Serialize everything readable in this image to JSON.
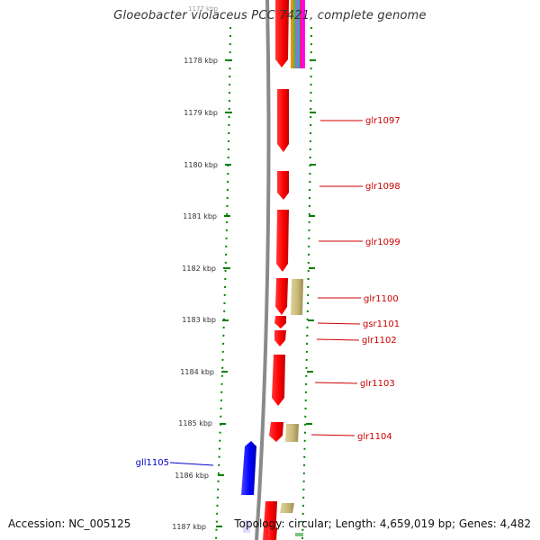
{
  "title": "Gloeobacter violaceus PCC 7421, complete genome",
  "footer": {
    "accession": "Accession: NC_005125",
    "topology": "Topology: circular; Length: 4,659,019 bp; Genes: 4,482"
  },
  "ruler": {
    "top_partial_label": "1177 kbp",
    "ticks": [
      "1178 kbp",
      "1179 kbp",
      "1180 kbp",
      "1181 kbp",
      "1182 kbp",
      "1183 kbp",
      "1184 kbp",
      "1185 kbp",
      "1186 kbp",
      "1187 kbp"
    ]
  },
  "genes": [
    {
      "name": "glr1097",
      "strand": "+",
      "color": "#cc0000"
    },
    {
      "name": "glr1098",
      "strand": "+",
      "color": "#cc0000"
    },
    {
      "name": "glr1099",
      "strand": "+",
      "color": "#cc0000"
    },
    {
      "name": "glr1100",
      "strand": "+",
      "color": "#cc0000"
    },
    {
      "name": "gsr1101",
      "strand": "+",
      "color": "#cc0000"
    },
    {
      "name": "glr1102",
      "strand": "+",
      "color": "#cc0000"
    },
    {
      "name": "glr1103",
      "strand": "+",
      "color": "#cc0000"
    },
    {
      "name": "glr1104",
      "strand": "+",
      "color": "#cc0000"
    },
    {
      "name": "gll1105",
      "strand": "-",
      "color": "#0000cc"
    }
  ],
  "colors": {
    "forward_gene": "#ff0000",
    "reverse_gene": "#0000ff",
    "feature_khaki": "#c8b878",
    "ruler": "#008000",
    "backbone": "#888888"
  }
}
